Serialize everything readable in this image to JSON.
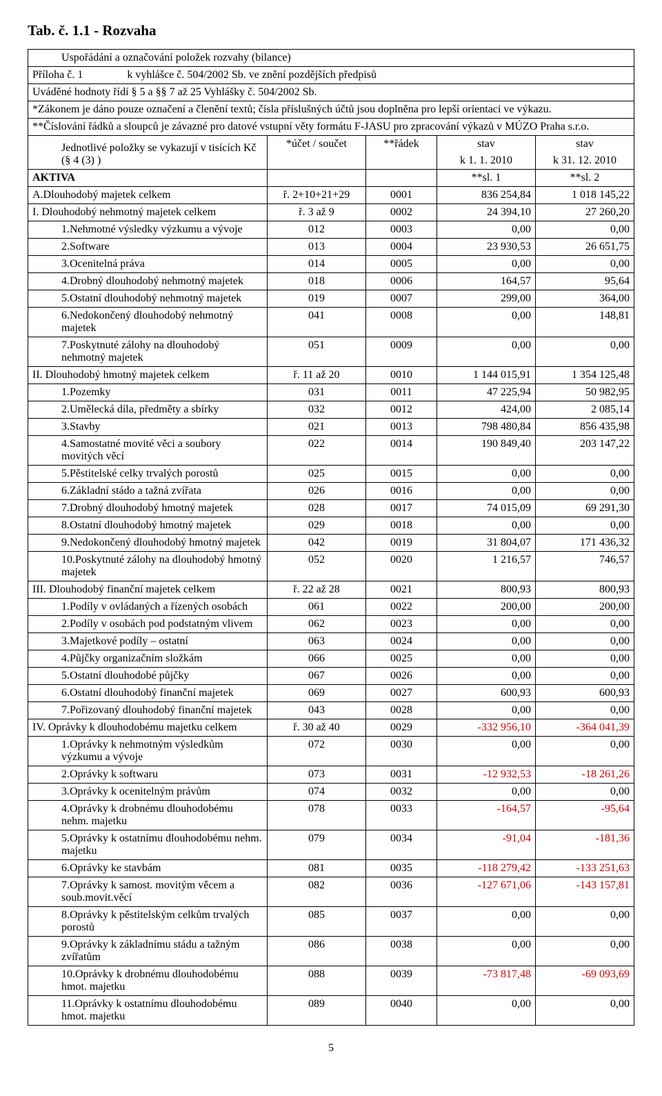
{
  "title": "Tab. č. 1.1 - Rozvaha",
  "intro": {
    "line1_left": "Uspořádání a označování položek rozvahy (bilance)",
    "line2_left": "Příloha č. 1",
    "line2_right": "k vyhlášce č. 504/2002 Sb. ve znění pozdějších předpisů",
    "line3": "Uváděné hodnoty řídí § 5 a §§ 7 až 25 Vyhlášky č. 504/2002 Sb.",
    "line4": "*Zákonem je dáno pouze označení a členění textů; čísla příslušných účtů jsou doplněna pro lepší orientaci ve výkazu.",
    "line5": "**Číslování řádků a sloupců je závazné pro datové vstupní věty formátu F-JASU pro zpracování výkazů v MÚZO Praha s.r.o."
  },
  "header": {
    "polozky": "Jednotlivé položky se vykazují v tisících Kč (§ 4 (3) )",
    "ucet": "*účet / součet",
    "radek": "**řádek",
    "stav1_a": "stav",
    "stav1_b": "k 1. 1. 2010",
    "stav2_a": "stav",
    "stav2_b": "k 31. 12. 2010",
    "aktiva": "AKTIVA",
    "sl1": "**sl. 1",
    "sl2": "**sl. 2"
  },
  "rows": [
    {
      "label": "A.Dlouhodobý majetek celkem",
      "ucet": "ř. 2+10+21+29",
      "radek": "0001",
      "v1": "836 254,84",
      "v2": "1 018 145,22",
      "v1neg": false,
      "v2neg": false
    },
    {
      "label": "I. Dlouhodobý nehmotný majetek celkem",
      "ucet": "ř. 3 až 9",
      "radek": "0002",
      "v1": "24 394,10",
      "v2": "27 260,20",
      "v1neg": false,
      "v2neg": false
    },
    {
      "label": "1.Nehmotné výsledky výzkumu a vývoje",
      "ucet": "012",
      "radek": "0003",
      "v1": "0,00",
      "v2": "0,00",
      "v1neg": false,
      "v2neg": false,
      "indent": true
    },
    {
      "label": "2.Software",
      "ucet": "013",
      "radek": "0004",
      "v1": "23 930,53",
      "v2": "26 651,75",
      "v1neg": false,
      "v2neg": false,
      "indent": true
    },
    {
      "label": "3.Ocenitelná práva",
      "ucet": "014",
      "radek": "0005",
      "v1": "0,00",
      "v2": "0,00",
      "v1neg": false,
      "v2neg": false,
      "indent": true
    },
    {
      "label": "4.Drobný dlouhodobý nehmotný majetek",
      "ucet": "018",
      "radek": "0006",
      "v1": "164,57",
      "v2": "95,64",
      "v1neg": false,
      "v2neg": false,
      "indent": true
    },
    {
      "label": "5.Ostatní dlouhodobý nehmotný majetek",
      "ucet": "019",
      "radek": "0007",
      "v1": "299,00",
      "v2": "364,00",
      "v1neg": false,
      "v2neg": false,
      "indent": true
    },
    {
      "label": "6.Nedokončený dlouhodobý nehmotný majetek",
      "ucet": "041",
      "radek": "0008",
      "v1": "0,00",
      "v2": "148,81",
      "v1neg": false,
      "v2neg": false,
      "indent": true
    },
    {
      "label": "7.Poskytnuté zálohy na dlouhodobý nehmotný majetek",
      "ucet": "051",
      "radek": "0009",
      "v1": "0,00",
      "v2": "0,00",
      "v1neg": false,
      "v2neg": false,
      "indent": true
    },
    {
      "label": "II. Dlouhodobý hmotný majetek celkem",
      "ucet": "ř. 11 až 20",
      "radek": "0010",
      "v1": "1 144 015,91",
      "v2": "1 354 125,48",
      "v1neg": false,
      "v2neg": false
    },
    {
      "label": "1.Pozemky",
      "ucet": "031",
      "radek": "0011",
      "v1": "47 225,94",
      "v2": "50 982,95",
      "v1neg": false,
      "v2neg": false,
      "indent": true
    },
    {
      "label": "2.Umělecká díla, předměty a sbírky",
      "ucet": "032",
      "radek": "0012",
      "v1": "424,00",
      "v2": "2 085,14",
      "v1neg": false,
      "v2neg": false,
      "indent": true
    },
    {
      "label": "3.Stavby",
      "ucet": "021",
      "radek": "0013",
      "v1": "798 480,84",
      "v2": "856 435,98",
      "v1neg": false,
      "v2neg": false,
      "indent": true
    },
    {
      "label": "4.Samostatné movité věci a soubory movitých věcí",
      "ucet": "022",
      "radek": "0014",
      "v1": "190 849,40",
      "v2": "203 147,22",
      "v1neg": false,
      "v2neg": false,
      "indent": true
    },
    {
      "label": "5.Pěstitelské celky trvalých porostů",
      "ucet": "025",
      "radek": "0015",
      "v1": "0,00",
      "v2": "0,00",
      "v1neg": false,
      "v2neg": false,
      "indent": true
    },
    {
      "label": "6.Základní stádo a tažná zvířata",
      "ucet": "026",
      "radek": "0016",
      "v1": "0,00",
      "v2": "0,00",
      "v1neg": false,
      "v2neg": false,
      "indent": true
    },
    {
      "label": "7.Drobný dlouhodobý hmotný majetek",
      "ucet": "028",
      "radek": "0017",
      "v1": "74 015,09",
      "v2": "69 291,30",
      "v1neg": false,
      "v2neg": false,
      "indent": true
    },
    {
      "label": "8.Ostatní dlouhodobý hmotný majetek",
      "ucet": "029",
      "radek": "0018",
      "v1": "0,00",
      "v2": "0,00",
      "v1neg": false,
      "v2neg": false,
      "indent": true
    },
    {
      "label": "9.Nedokončený dlouhodobý hmotný majetek",
      "ucet": "042",
      "radek": "0019",
      "v1": "31 804,07",
      "v2": "171 436,32",
      "v1neg": false,
      "v2neg": false,
      "indent": true
    },
    {
      "label": "10.Poskytnuté zálohy na dlouhodobý hmotný majetek",
      "ucet": "052",
      "radek": "0020",
      "v1": "1 216,57",
      "v2": "746,57",
      "v1neg": false,
      "v2neg": false,
      "indent": true
    },
    {
      "label": "III. Dlouhodobý finanční majetek celkem",
      "ucet": "ř. 22 až 28",
      "radek": "0021",
      "v1": "800,93",
      "v2": "800,93",
      "v1neg": false,
      "v2neg": false
    },
    {
      "label": "1.Podíly v ovládaných a řízených osobách",
      "ucet": "061",
      "radek": "0022",
      "v1": "200,00",
      "v2": "200,00",
      "v1neg": false,
      "v2neg": false,
      "indent": true
    },
    {
      "label": "2.Podíly v osobách pod podstatným vlivem",
      "ucet": "062",
      "radek": "0023",
      "v1": "0,00",
      "v2": "0,00",
      "v1neg": false,
      "v2neg": false,
      "indent": true
    },
    {
      "label": "3.Majetkové podíly – ostatní",
      "ucet": "063",
      "radek": "0024",
      "v1": "0,00",
      "v2": "0,00",
      "v1neg": false,
      "v2neg": false,
      "indent": true
    },
    {
      "label": "4.Půjčky organizačním složkám",
      "ucet": "066",
      "radek": "0025",
      "v1": "0,00",
      "v2": "0,00",
      "v1neg": false,
      "v2neg": false,
      "indent": true
    },
    {
      "label": "5.Ostatní dlouhodobé půjčky",
      "ucet": "067",
      "radek": "0026",
      "v1": "0,00",
      "v2": "0,00",
      "v1neg": false,
      "v2neg": false,
      "indent": true
    },
    {
      "label": "6.Ostatní dlouhodobý finanční majetek",
      "ucet": "069",
      "radek": "0027",
      "v1": "600,93",
      "v2": "600,93",
      "v1neg": false,
      "v2neg": false,
      "indent": true
    },
    {
      "label": "7.Pořizovaný dlouhodobý finanční majetek",
      "ucet": "043",
      "radek": "0028",
      "v1": "0,00",
      "v2": "0,00",
      "v1neg": false,
      "v2neg": false,
      "indent": true
    },
    {
      "label": "IV. Oprávky k dlouhodobému majetku celkem",
      "ucet": "ř. 30 až 40",
      "radek": "0029",
      "v1": "-332 956,10",
      "v2": "-364 041,39",
      "v1neg": true,
      "v2neg": true
    },
    {
      "label": "1.Oprávky k nehmotným výsledkům výzkumu a vývoje",
      "ucet": "072",
      "radek": "0030",
      "v1": "0,00",
      "v2": "0,00",
      "v1neg": false,
      "v2neg": false,
      "indent": true
    },
    {
      "label": "2.Oprávky k softwaru",
      "ucet": "073",
      "radek": "0031",
      "v1": "-12 932,53",
      "v2": "-18 261,26",
      "v1neg": true,
      "v2neg": true,
      "indent": true
    },
    {
      "label": "3.Oprávky k ocenitelným právům",
      "ucet": "074",
      "radek": "0032",
      "v1": "0,00",
      "v2": "0,00",
      "v1neg": false,
      "v2neg": false,
      "indent": true
    },
    {
      "label": "4.Oprávky k drobnému dlouhodobému nehm. majetku",
      "ucet": "078",
      "radek": "0033",
      "v1": "-164,57",
      "v2": "-95,64",
      "v1neg": true,
      "v2neg": true,
      "indent": true
    },
    {
      "label": "5.Oprávky k ostatnímu dlouhodobému nehm. majetku",
      "ucet": "079",
      "radek": "0034",
      "v1": "-91,04",
      "v2": "-181,36",
      "v1neg": true,
      "v2neg": true,
      "indent": true
    },
    {
      "label": "6.Oprávky ke stavbám",
      "ucet": "081",
      "radek": "0035",
      "v1": "-118 279,42",
      "v2": "-133 251,63",
      "v1neg": true,
      "v2neg": true,
      "indent": true
    },
    {
      "label": "7.Oprávky k samost. movitým věcem a soub.movit.věcí",
      "ucet": "082",
      "radek": "0036",
      "v1": "-127 671,06",
      "v2": "-143 157,81",
      "v1neg": true,
      "v2neg": true,
      "indent": true
    },
    {
      "label": "8.Oprávky k pěstitelským celkům trvalých porostů",
      "ucet": "085",
      "radek": "0037",
      "v1": "0,00",
      "v2": "0,00",
      "v1neg": false,
      "v2neg": false,
      "indent": true
    },
    {
      "label": "9.Oprávky k základnímu stádu a tažným zvířatům",
      "ucet": "086",
      "radek": "0038",
      "v1": "0,00",
      "v2": "0,00",
      "v1neg": false,
      "v2neg": false,
      "indent": true
    },
    {
      "label": "10.Oprávky k drobnému dlouhodobému hmot. majetku",
      "ucet": "088",
      "radek": "0039",
      "v1": "-73 817,48",
      "v2": "-69 093,69",
      "v1neg": true,
      "v2neg": true,
      "indent": true
    },
    {
      "label": "11.Oprávky k ostatnímu dlouhodobému hmot. majetku",
      "ucet": "089",
      "radek": "0040",
      "v1": "0,00",
      "v2": "0,00",
      "v1neg": false,
      "v2neg": false,
      "indent": true
    }
  ],
  "page_number": "5"
}
